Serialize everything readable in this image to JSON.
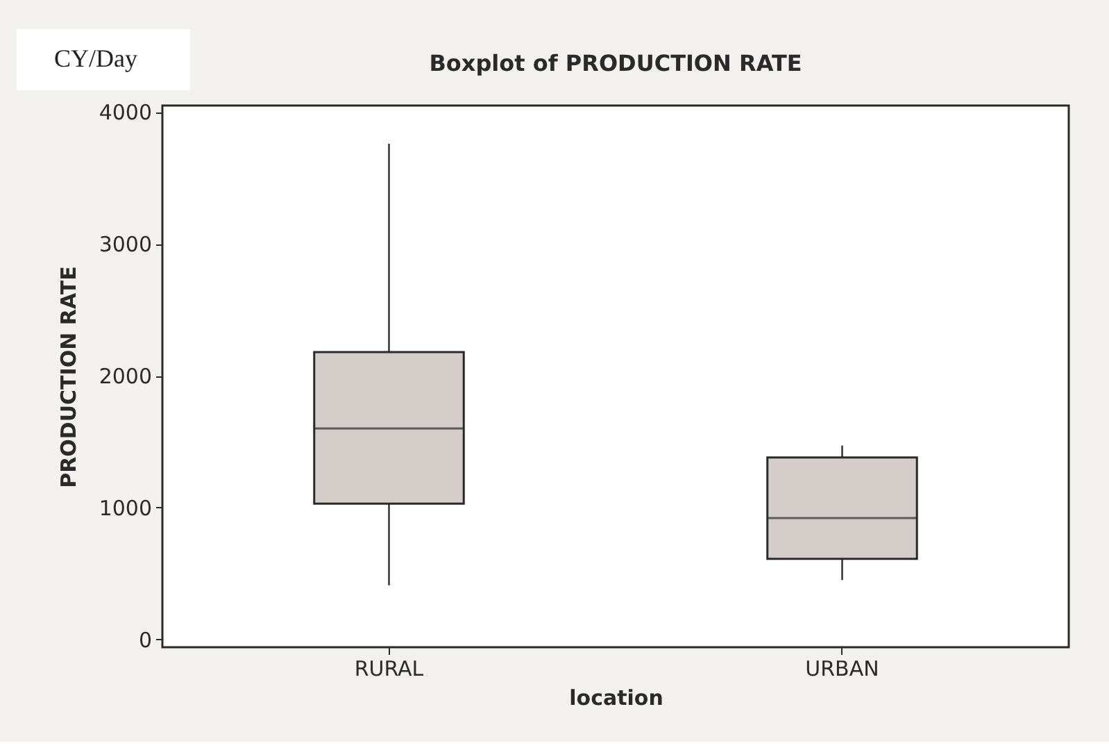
{
  "chart_data": {
    "type": "box",
    "title": "Boxplot of PRODUCTION RATE",
    "xlabel": "location",
    "ylabel": "PRODUCTION RATE",
    "annotations": [
      "CY/Day"
    ],
    "categories": [
      "RURAL",
      "URBAN"
    ],
    "boxes": [
      {
        "low": 410,
        "q1": 1030,
        "median": 1600,
        "q3": 2180,
        "high": 3760
      },
      {
        "low": 450,
        "q1": 610,
        "median": 920,
        "q3": 1380,
        "high": 1470
      }
    ],
    "color": "#d4ccc9",
    "ylim": [
      -60,
      4050
    ],
    "yticks": [
      0,
      1000,
      2000,
      3000,
      4000
    ],
    "grid": false
  }
}
